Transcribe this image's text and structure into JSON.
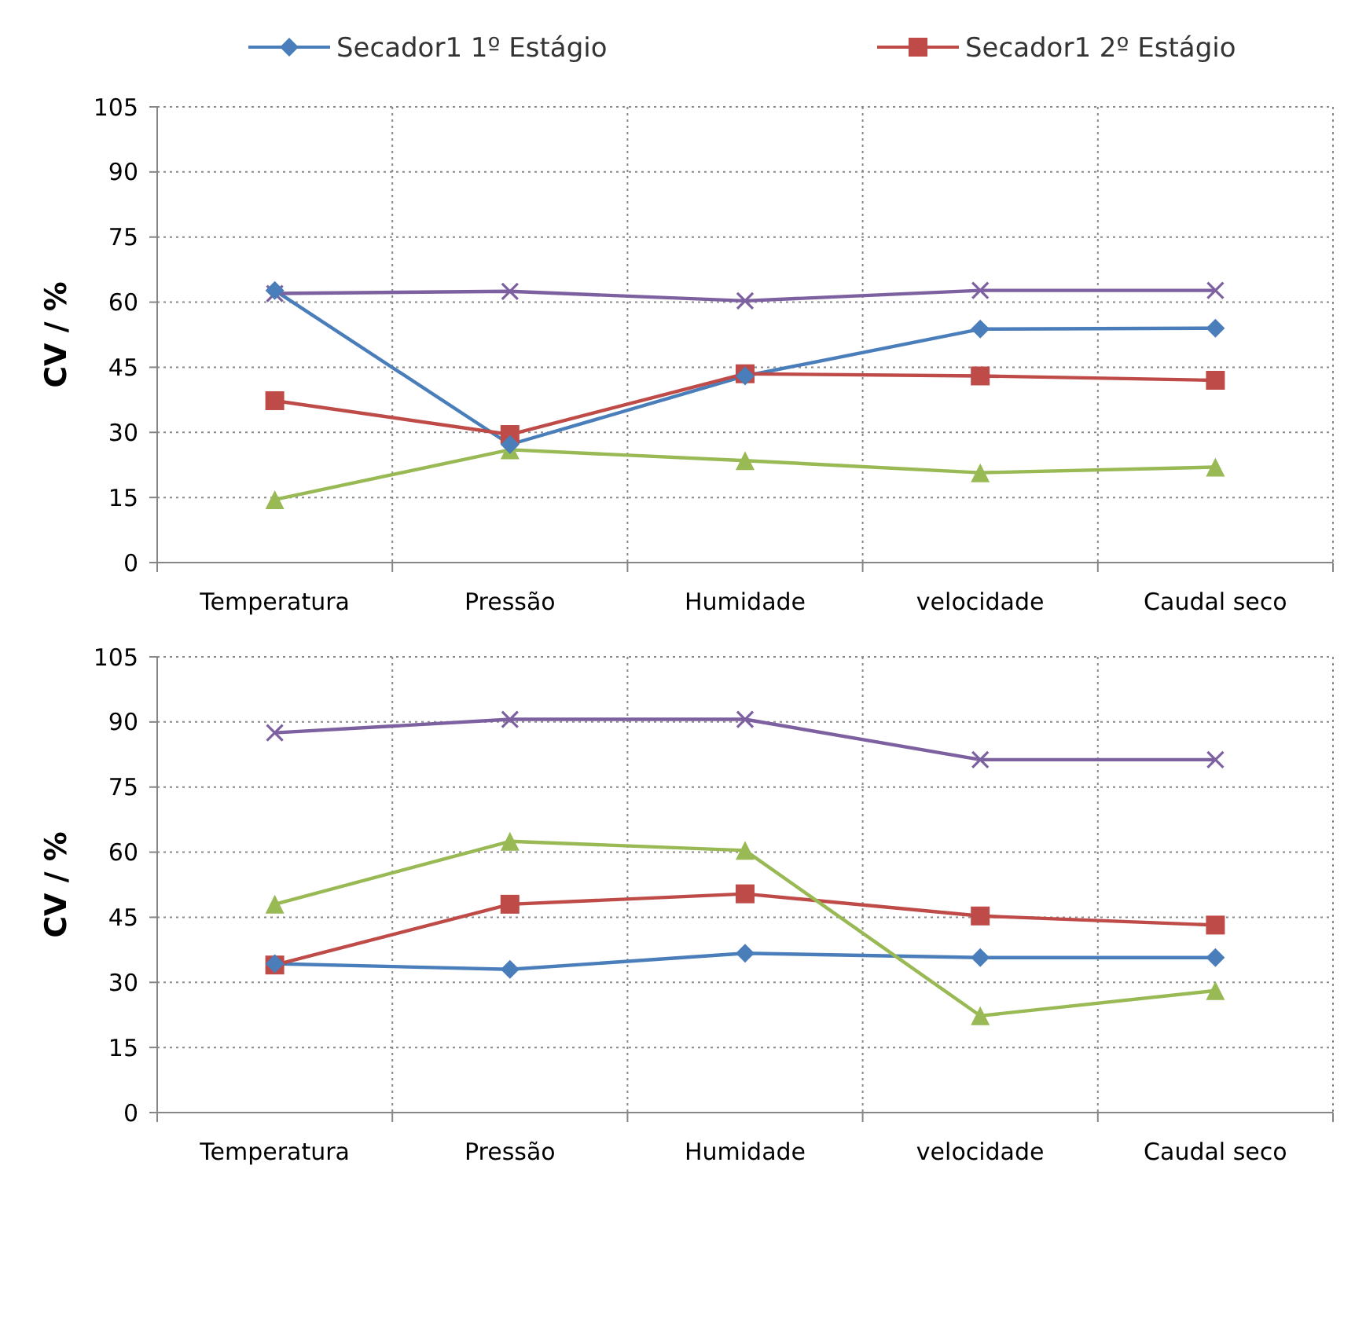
{
  "chart_data": [
    {
      "type": "line",
      "ylabel": "CV / %",
      "categories": [
        "Temperatura",
        "Pressão",
        "Humidade",
        "velocidade",
        "Caudal seco"
      ],
      "ylim": [
        0,
        105
      ],
      "yticks": [
        0,
        15,
        30,
        45,
        60,
        75,
        90,
        105
      ],
      "grid": true,
      "legend": "top",
      "series": [
        {
          "name": "Secador1 1º Estágio",
          "color": "#4a7ebb",
          "marker": "diamond",
          "values": [
            62.7,
            27.2,
            43,
            53.8,
            54
          ]
        },
        {
          "name": "Secador1 2º Estágio",
          "color": "#be4b48",
          "marker": "square",
          "values": [
            37.3,
            29.5,
            43.5,
            43,
            42
          ]
        },
        {
          "color": "#98b954",
          "marker": "triangle",
          "values": [
            14.5,
            26,
            23.5,
            20.7,
            22
          ]
        },
        {
          "color": "#7d60a0",
          "marker": "cross",
          "values": [
            62,
            62.5,
            60.3,
            62.7,
            62.7
          ]
        }
      ]
    },
    {
      "type": "line",
      "ylabel": "CV / %",
      "categories": [
        "Temperatura",
        "Pressão",
        "Humidade",
        "velocidade",
        "Caudal seco"
      ],
      "ylim": [
        0,
        105
      ],
      "yticks": [
        0,
        15,
        30,
        45,
        60,
        75,
        90,
        105
      ],
      "grid": true,
      "series": [
        {
          "color": "#4a7ebb",
          "marker": "diamond",
          "values": [
            34.3,
            33,
            36.7,
            35.7,
            35.7
          ]
        },
        {
          "color": "#be4b48",
          "marker": "square",
          "values": [
            34,
            48,
            50.4,
            45.3,
            43.2
          ]
        },
        {
          "color": "#98b954",
          "marker": "triangle",
          "values": [
            48,
            62.5,
            60.4,
            22.3,
            28.1
          ]
        },
        {
          "color": "#7d60a0",
          "marker": "cross",
          "values": [
            87.5,
            90.6,
            90.6,
            81.3,
            81.3
          ]
        }
      ]
    }
  ]
}
